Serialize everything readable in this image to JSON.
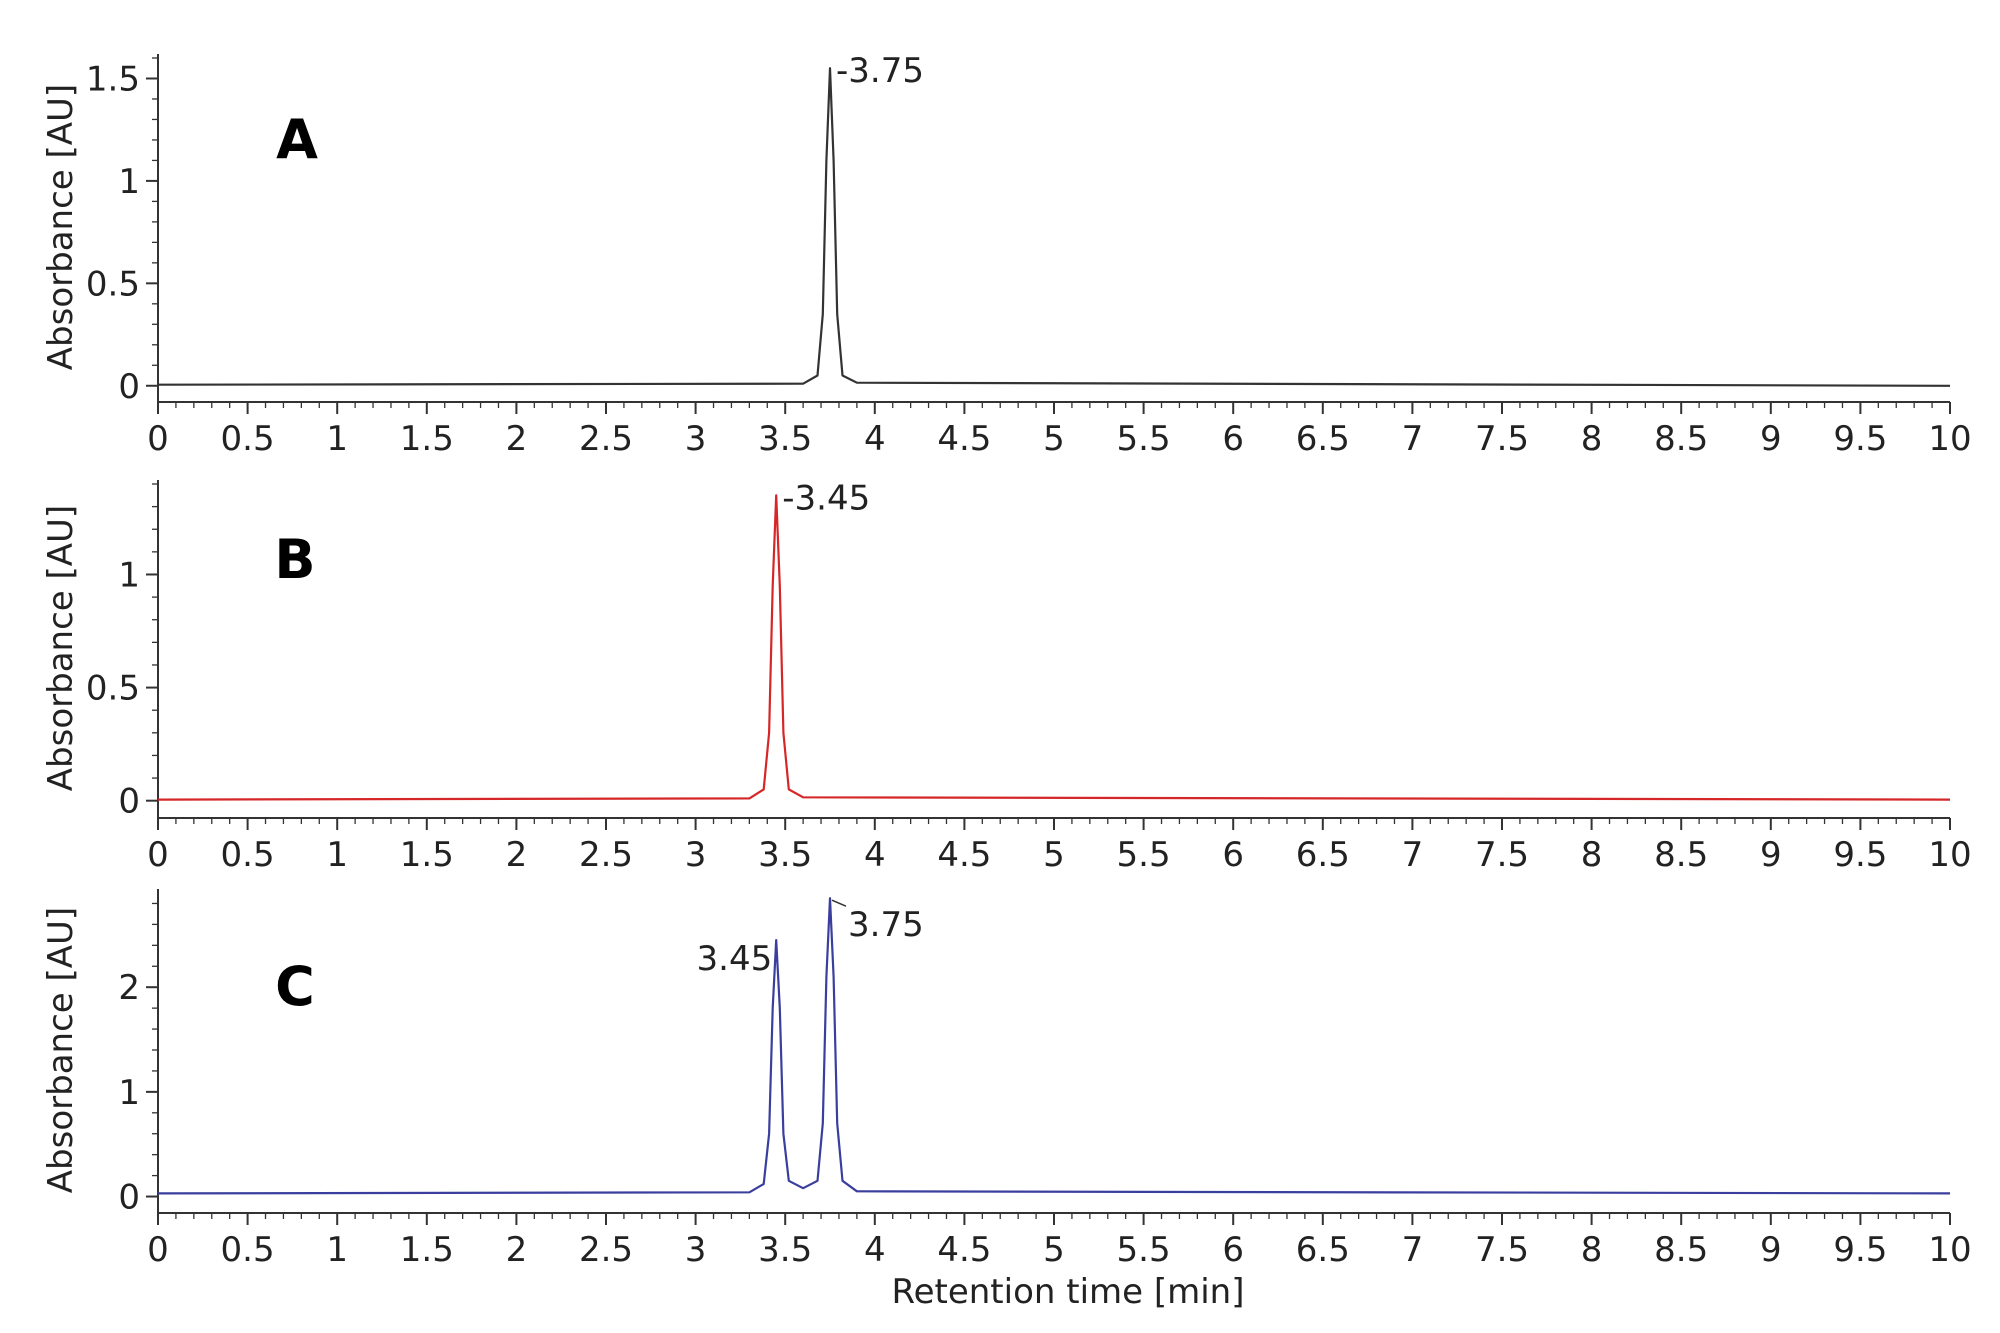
{
  "chart_data": [
    {
      "type": "line",
      "panel_label": "A",
      "ylabel": "Absorbance [AU]",
      "xlim": [
        0,
        10
      ],
      "ylim": [
        -0.05,
        1.6
      ],
      "x_ticks": [
        "0",
        "0.5",
        "1",
        "1.5",
        "2",
        "2.5",
        "3",
        "3.5",
        "4",
        "4.5",
        "5",
        "5.5",
        "6",
        "6.5",
        "7",
        "7.5",
        "8",
        "8.5",
        "9",
        "9.5",
        "10"
      ],
      "y_ticks": [
        "0",
        "0.5",
        "1",
        "1.5"
      ],
      "series": [
        {
          "color": "#333333",
          "baseline": 0.005,
          "x": [
            0,
            3.6,
            3.68,
            3.71,
            3.73,
            3.75,
            3.77,
            3.79,
            3.82,
            3.9,
            10
          ],
          "y": [
            0.005,
            0.01,
            0.05,
            0.35,
            1.1,
            1.55,
            1.1,
            0.35,
            0.05,
            0.015,
            0.0
          ]
        }
      ],
      "annotations": [
        {
          "x": 3.75,
          "y": 1.55,
          "text": "-3.75"
        }
      ]
    },
    {
      "type": "line",
      "panel_label": "B",
      "ylabel": "Absorbance [AU]",
      "xlim": [
        0,
        10
      ],
      "ylim": [
        -0.05,
        1.4
      ],
      "x_ticks": [
        "0",
        "0.5",
        "1",
        "1.5",
        "2",
        "2.5",
        "3",
        "3.5",
        "4",
        "4.5",
        "5",
        "5.5",
        "6",
        "6.5",
        "7",
        "7.5",
        "8",
        "8.5",
        "9",
        "9.5",
        "10"
      ],
      "y_ticks": [
        "0",
        "0.5",
        "1"
      ],
      "series": [
        {
          "color": "#d62728",
          "baseline": 0.005,
          "x": [
            0,
            3.3,
            3.38,
            3.41,
            3.43,
            3.45,
            3.47,
            3.49,
            3.52,
            3.6,
            10
          ],
          "y": [
            0.005,
            0.01,
            0.05,
            0.3,
            0.95,
            1.35,
            0.95,
            0.3,
            0.05,
            0.015,
            0.005
          ]
        }
      ],
      "annotations": [
        {
          "x": 3.45,
          "y": 1.35,
          "text": "-3.45"
        }
      ]
    },
    {
      "type": "line",
      "panel_label": "C",
      "ylabel": "Absorbance [AU]",
      "xlim": [
        0,
        10
      ],
      "ylim": [
        -0.1,
        2.9
      ],
      "x_ticks": [
        "0",
        "0.5",
        "1",
        "1.5",
        "2",
        "2.5",
        "3",
        "3.5",
        "4",
        "4.5",
        "5",
        "5.5",
        "6",
        "6.5",
        "7",
        "7.5",
        "8",
        "8.5",
        "9",
        "9.5",
        "10"
      ],
      "y_ticks": [
        "0",
        "1",
        "2"
      ],
      "xlabel": "Retention time [min]",
      "series": [
        {
          "color": "#3a3f9e",
          "baseline": 0.03,
          "x": [
            0,
            3.3,
            3.38,
            3.41,
            3.43,
            3.45,
            3.47,
            3.49,
            3.52,
            3.6,
            3.68,
            3.71,
            3.73,
            3.75,
            3.77,
            3.79,
            3.82,
            3.9,
            10
          ],
          "y": [
            0.03,
            0.04,
            0.12,
            0.6,
            1.8,
            2.45,
            1.8,
            0.6,
            0.15,
            0.08,
            0.15,
            0.7,
            2.1,
            2.85,
            2.1,
            0.7,
            0.15,
            0.05,
            0.03
          ]
        }
      ],
      "annotations": [
        {
          "x": 3.45,
          "y": 2.45,
          "text": "3.45"
        },
        {
          "x": 3.75,
          "y": 2.85,
          "text": "3.75"
        }
      ]
    }
  ]
}
